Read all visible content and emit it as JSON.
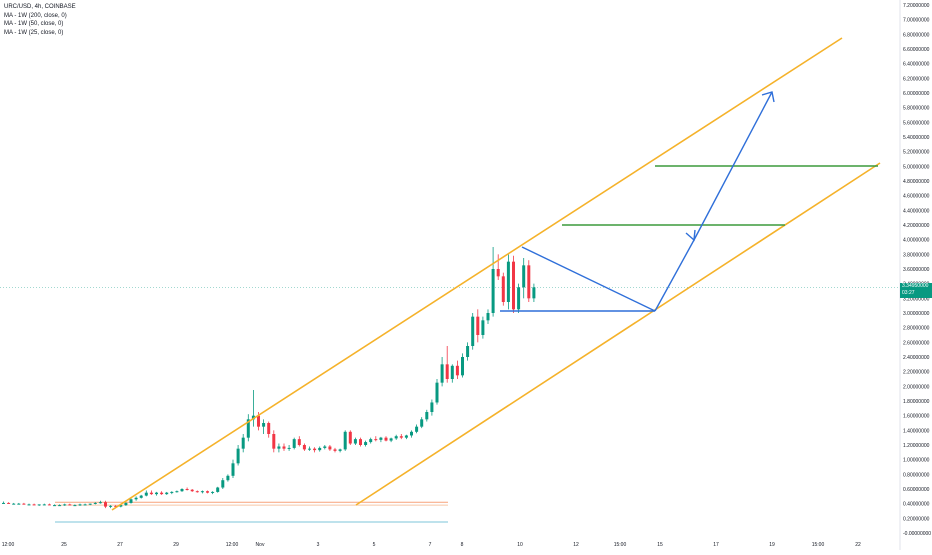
{
  "legend": {
    "title": "URC/USD, 4h, COINBASE",
    "ma1": "MA - 1W (200, close, 0)",
    "ma2": "MA - 1W (50, close, 0)",
    "ma3": "MA - 1W (25, close, 0)"
  },
  "price_badge": {
    "price": "3.34950000",
    "time": "03:27",
    "color": "#089981"
  },
  "colors": {
    "up": "#089981",
    "down": "#f23645",
    "channel": "#f5b22a",
    "target": "#3c9a3c",
    "arrow": "#2f6fd9",
    "wick": "#787b86"
  },
  "chart_data": {
    "type": "candlestick",
    "symbol": "URC/USD",
    "timeframe": "4h",
    "exchange": "COINBASE",
    "ylim": [
      0,
      7.2
    ],
    "y_ticks": [
      "7.20000000",
      "7.00000000",
      "6.80000000",
      "6.60000000",
      "6.40000000",
      "6.20000000",
      "6.00000000",
      "5.80000000",
      "5.60000000",
      "5.40000000",
      "5.20000000",
      "5.00000000",
      "4.80000000",
      "4.60000000",
      "4.40000000",
      "4.20000000",
      "4.00000000",
      "3.80000000",
      "3.60000000",
      "3.40000000",
      "3.20000000",
      "3.00000000",
      "2.80000000",
      "2.60000000",
      "2.40000000",
      "2.20000000",
      "2.00000000",
      "1.80000000",
      "1.60000000",
      "1.40000000",
      "1.20000000",
      "1.00000000",
      "0.80000000",
      "0.60000000",
      "0.40000000",
      "0.20000000",
      "-0.00000000"
    ],
    "x_ticks": [
      "12:00",
      "25",
      "27",
      "29",
      "12:00",
      "Nov",
      "3",
      "5",
      "7",
      "8",
      "10",
      "12",
      "15:00",
      "15",
      "17",
      "19",
      "15:00",
      "22"
    ],
    "candles": [
      [
        0.41,
        0.43,
        0.4,
        0.41
      ],
      [
        0.41,
        0.42,
        0.4,
        0.4
      ],
      [
        0.4,
        0.41,
        0.39,
        0.4
      ],
      [
        0.4,
        0.41,
        0.39,
        0.4
      ],
      [
        0.4,
        0.41,
        0.39,
        0.39
      ],
      [
        0.39,
        0.4,
        0.38,
        0.39
      ],
      [
        0.39,
        0.4,
        0.38,
        0.38
      ],
      [
        0.38,
        0.39,
        0.37,
        0.39
      ],
      [
        0.39,
        0.4,
        0.38,
        0.39
      ],
      [
        0.39,
        0.4,
        0.38,
        0.38
      ],
      [
        0.38,
        0.39,
        0.37,
        0.38
      ],
      [
        0.38,
        0.39,
        0.37,
        0.38
      ],
      [
        0.38,
        0.4,
        0.37,
        0.39
      ],
      [
        0.39,
        0.4,
        0.38,
        0.38
      ],
      [
        0.38,
        0.39,
        0.37,
        0.38
      ],
      [
        0.38,
        0.4,
        0.37,
        0.39
      ],
      [
        0.39,
        0.4,
        0.38,
        0.39
      ],
      [
        0.39,
        0.4,
        0.38,
        0.4
      ],
      [
        0.4,
        0.42,
        0.39,
        0.41
      ],
      [
        0.41,
        0.44,
        0.4,
        0.42
      ],
      [
        0.42,
        0.44,
        0.34,
        0.36
      ],
      [
        0.36,
        0.38,
        0.34,
        0.37
      ],
      [
        0.37,
        0.38,
        0.35,
        0.36
      ],
      [
        0.36,
        0.38,
        0.35,
        0.38
      ],
      [
        0.38,
        0.42,
        0.37,
        0.41
      ],
      [
        0.41,
        0.48,
        0.4,
        0.46
      ],
      [
        0.46,
        0.5,
        0.44,
        0.48
      ],
      [
        0.48,
        0.52,
        0.47,
        0.51
      ],
      [
        0.51,
        0.58,
        0.5,
        0.55
      ],
      [
        0.55,
        0.58,
        0.52,
        0.53
      ],
      [
        0.53,
        0.56,
        0.51,
        0.55
      ],
      [
        0.55,
        0.57,
        0.52,
        0.53
      ],
      [
        0.53,
        0.56,
        0.52,
        0.55
      ],
      [
        0.55,
        0.57,
        0.53,
        0.56
      ],
      [
        0.56,
        0.58,
        0.55,
        0.57
      ],
      [
        0.57,
        0.61,
        0.56,
        0.6
      ],
      [
        0.6,
        0.62,
        0.58,
        0.59
      ],
      [
        0.59,
        0.6,
        0.56,
        0.57
      ],
      [
        0.57,
        0.58,
        0.55,
        0.56
      ],
      [
        0.56,
        0.58,
        0.54,
        0.57
      ],
      [
        0.57,
        0.58,
        0.54,
        0.55
      ],
      [
        0.55,
        0.57,
        0.53,
        0.56
      ],
      [
        0.56,
        0.63,
        0.55,
        0.62
      ],
      [
        0.62,
        0.75,
        0.6,
        0.72
      ],
      [
        0.72,
        0.8,
        0.7,
        0.78
      ],
      [
        0.78,
        1.0,
        0.75,
        0.95
      ],
      [
        0.95,
        1.2,
        0.92,
        1.15
      ],
      [
        1.15,
        1.35,
        1.1,
        1.3
      ],
      [
        1.3,
        1.62,
        1.25,
        1.55
      ],
      [
        1.55,
        1.95,
        1.45,
        1.6
      ],
      [
        1.6,
        1.65,
        1.4,
        1.45
      ],
      [
        1.45,
        1.55,
        1.35,
        1.5
      ],
      [
        1.5,
        1.52,
        1.3,
        1.35
      ],
      [
        1.35,
        1.4,
        1.1,
        1.15
      ],
      [
        1.15,
        1.22,
        1.1,
        1.18
      ],
      [
        1.18,
        1.22,
        1.12,
        1.15
      ],
      [
        1.15,
        1.2,
        1.12,
        1.16
      ],
      [
        1.16,
        1.3,
        1.14,
        1.28
      ],
      [
        1.28,
        1.32,
        1.18,
        1.2
      ],
      [
        1.2,
        1.22,
        1.12,
        1.14
      ],
      [
        1.14,
        1.18,
        1.12,
        1.15
      ],
      [
        1.15,
        1.17,
        1.1,
        1.13
      ],
      [
        1.13,
        1.18,
        1.11,
        1.16
      ],
      [
        1.16,
        1.2,
        1.14,
        1.18
      ],
      [
        1.18,
        1.2,
        1.12,
        1.14
      ],
      [
        1.14,
        1.16,
        1.1,
        1.12
      ],
      [
        1.12,
        1.15,
        1.1,
        1.14
      ],
      [
        1.14,
        1.4,
        1.12,
        1.38
      ],
      [
        1.38,
        1.4,
        1.2,
        1.22
      ],
      [
        1.22,
        1.3,
        1.2,
        1.28
      ],
      [
        1.28,
        1.3,
        1.18,
        1.2
      ],
      [
        1.2,
        1.26,
        1.18,
        1.24
      ],
      [
        1.24,
        1.3,
        1.22,
        1.28
      ],
      [
        1.28,
        1.32,
        1.25,
        1.27
      ],
      [
        1.27,
        1.31,
        1.24,
        1.3
      ],
      [
        1.3,
        1.32,
        1.25,
        1.26
      ],
      [
        1.26,
        1.3,
        1.24,
        1.29
      ],
      [
        1.29,
        1.34,
        1.27,
        1.32
      ],
      [
        1.32,
        1.35,
        1.28,
        1.3
      ],
      [
        1.3,
        1.34,
        1.28,
        1.33
      ],
      [
        1.33,
        1.4,
        1.3,
        1.38
      ],
      [
        1.38,
        1.48,
        1.36,
        1.45
      ],
      [
        1.45,
        1.58,
        1.43,
        1.55
      ],
      [
        1.55,
        1.68,
        1.52,
        1.65
      ],
      [
        1.65,
        1.82,
        1.6,
        1.78
      ],
      [
        1.78,
        2.1,
        1.75,
        2.05
      ],
      [
        2.05,
        2.4,
        2.0,
        2.3
      ],
      [
        2.3,
        2.55,
        2.05,
        2.1
      ],
      [
        2.1,
        2.3,
        2.05,
        2.28
      ],
      [
        2.28,
        2.35,
        2.1,
        2.15
      ],
      [
        2.15,
        2.45,
        2.12,
        2.4
      ],
      [
        2.4,
        2.6,
        2.35,
        2.55
      ],
      [
        2.55,
        3.0,
        2.5,
        2.95
      ],
      [
        2.95,
        3.05,
        2.6,
        2.7
      ],
      [
        2.7,
        2.95,
        2.65,
        2.9
      ],
      [
        2.9,
        3.05,
        2.85,
        3.0
      ],
      [
        3.0,
        3.9,
        2.95,
        3.6
      ],
      [
        3.6,
        3.8,
        3.45,
        3.5
      ],
      [
        3.5,
        3.55,
        3.1,
        3.15
      ],
      [
        3.15,
        3.8,
        3.05,
        3.7
      ],
      [
        3.7,
        3.78,
        3.0,
        3.05
      ],
      [
        3.05,
        3.4,
        3.0,
        3.35
      ],
      [
        3.35,
        3.75,
        3.2,
        3.65
      ],
      [
        3.65,
        3.72,
        3.15,
        3.2
      ],
      [
        3.2,
        3.4,
        3.15,
        3.35
      ]
    ],
    "annotations": {
      "upper_channel": [
        [
          0.45,
          0.3
        ],
        [
          3.92,
          3.88
        ],
        [
          6.8,
          6.75
        ]
      ],
      "lower_channel": [
        [
          4.2,
          0.36
        ],
        [
          3.02,
          3.02
        ],
        [
          5.05,
          5.0
        ]
      ],
      "target_lines": [
        4.22,
        5.02
      ],
      "support_line": 3.02
    },
    "xlabel": "",
    "ylabel": ""
  }
}
